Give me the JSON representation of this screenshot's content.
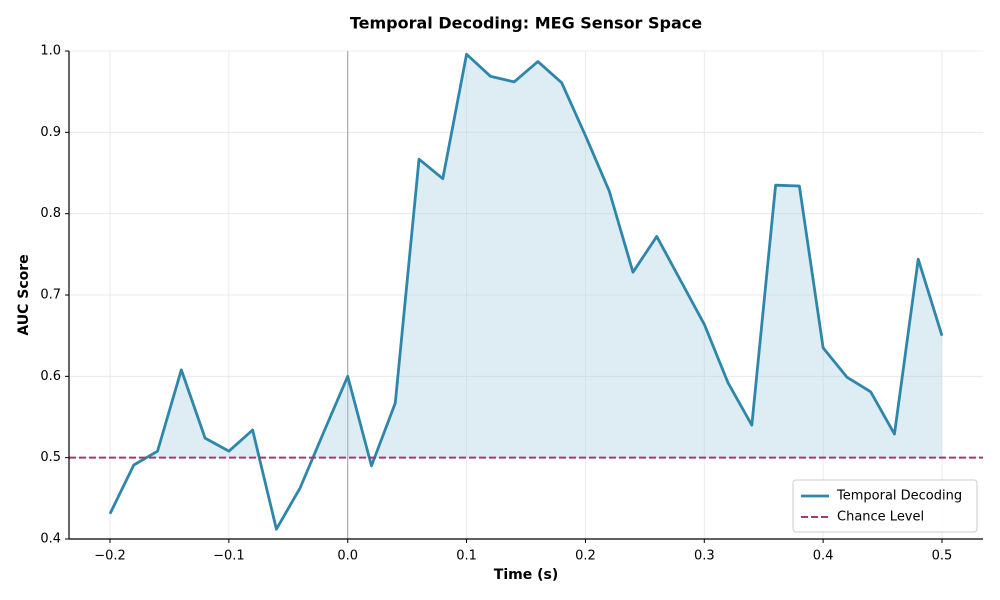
{
  "chart_data": {
    "type": "line",
    "title": "Temporal Decoding: MEG Sensor Space",
    "x_label": "Time (s)",
    "y_label": "AUC Score",
    "x": [
      -0.2,
      -0.18,
      -0.16,
      -0.14,
      -0.12,
      -0.1,
      -0.08,
      -0.06,
      -0.04,
      -0.02,
      0.0,
      0.02,
      0.04,
      0.06,
      0.08,
      0.1,
      0.12,
      0.14,
      0.16,
      0.18,
      0.2,
      0.22,
      0.24,
      0.26,
      0.28,
      0.3,
      0.32,
      0.34,
      0.36,
      0.38,
      0.4,
      0.42,
      0.44,
      0.46,
      0.48,
      0.5
    ],
    "series": [
      {
        "name": "Temporal Decoding",
        "color": "#2e86ab",
        "values": [
          0.431,
          0.491,
          0.508,
          0.608,
          0.524,
          0.508,
          0.534,
          0.412,
          0.463,
          0.532,
          0.6,
          0.49,
          0.567,
          0.867,
          0.843,
          0.996,
          0.969,
          0.962,
          0.987,
          0.961,
          0.896,
          0.828,
          0.728,
          0.772,
          0.718,
          0.664,
          0.592,
          0.54,
          0.835,
          0.834,
          0.635,
          0.599,
          0.581,
          0.529,
          0.744,
          0.65
        ]
      }
    ],
    "chance": {
      "name": "Chance Level",
      "color": "#a23b72",
      "value": 0.5
    },
    "vline": 0,
    "fill_color": "#a8cfe0",
    "xlim": [
      -0.2345,
      0.5345
    ],
    "ylim": [
      0.4,
      1.0
    ],
    "xticks": [
      {
        "value": -0.2,
        "label": "−0.2"
      },
      {
        "value": -0.1,
        "label": "−0.1"
      },
      {
        "value": 0,
        "label": "0.0"
      },
      0.1,
      0.2,
      0.3,
      0.4,
      0.5
    ],
    "yticks": [
      0.4,
      0.5,
      0.6,
      0.7,
      0.8,
      0.9,
      {
        "value": 1,
        "label": "1.0"
      }
    ],
    "grid": true,
    "legend": "lower right"
  }
}
